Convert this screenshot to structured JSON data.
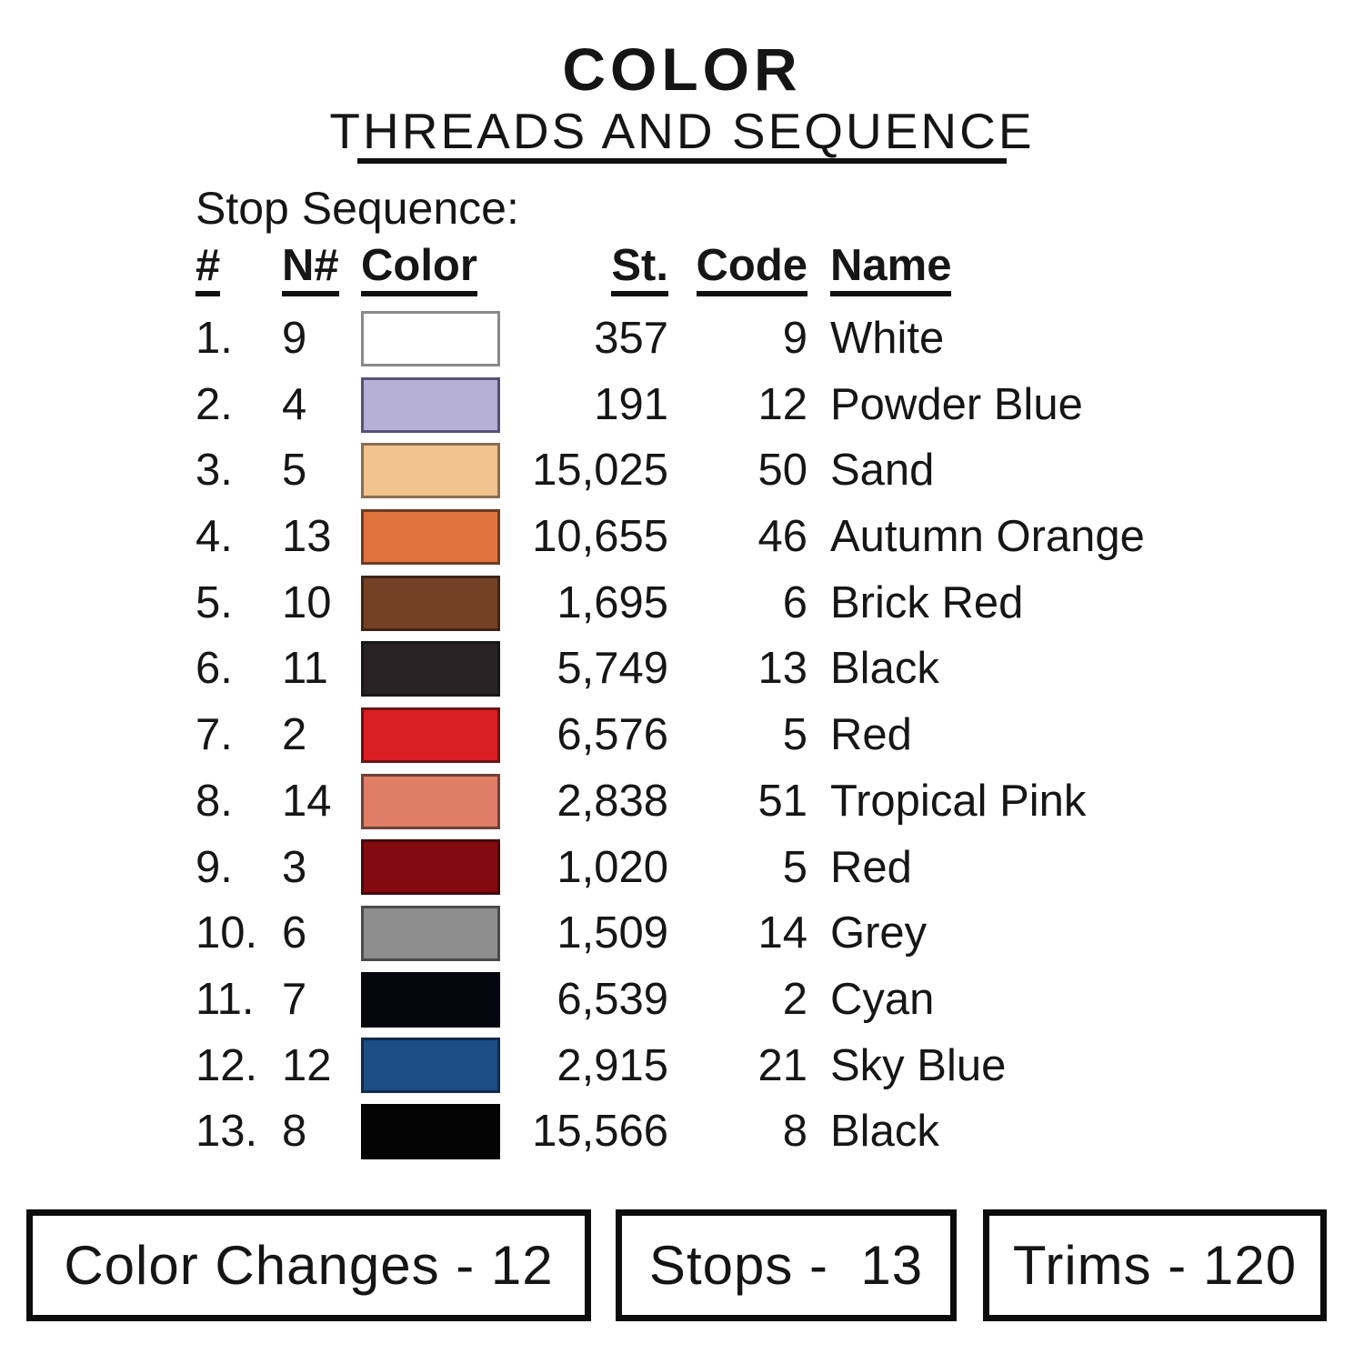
{
  "header": {
    "title": "COLOR",
    "subtitle": "THREADS AND SEQUENCE"
  },
  "section": {
    "stop_sequence_label": "Stop Sequence:"
  },
  "table": {
    "headers": [
      "#",
      "N#",
      "Color",
      "St.",
      "Code",
      "Name"
    ],
    "rows": [
      {
        "num": "1.",
        "n": "9",
        "swatch": {
          "fill": "#ffffff",
          "border": "#8a8a8a"
        },
        "st": "357",
        "code": "9",
        "name": "White"
      },
      {
        "num": "2.",
        "n": "4",
        "swatch": {
          "fill": "#b6b1d4",
          "border": "#55517a"
        },
        "st": "191",
        "code": "12",
        "name": "Powder Blue"
      },
      {
        "num": "3.",
        "n": "5",
        "swatch": {
          "fill": "#f1c48f",
          "border": "#8a6e52"
        },
        "st": "15,025",
        "code": "50",
        "name": "Sand"
      },
      {
        "num": "4.",
        "n": "13",
        "swatch": {
          "fill": "#e0743e",
          "border": "#6e3a21"
        },
        "st": "10,655",
        "code": "46",
        "name": "Autumn Orange"
      },
      {
        "num": "5.",
        "n": "10",
        "swatch": {
          "fill": "#744126",
          "border": "#3f2415"
        },
        "st": "1,695",
        "code": "6",
        "name": "Brick Red"
      },
      {
        "num": "6.",
        "n": "11",
        "swatch": {
          "fill": "#272223",
          "border": "#191616"
        },
        "st": "5,749",
        "code": "13",
        "name": "Black"
      },
      {
        "num": "7.",
        "n": "2",
        "swatch": {
          "fill": "#d91f23",
          "border": "#6b1215"
        },
        "st": "6,576",
        "code": "5",
        "name": "Red"
      },
      {
        "num": "8.",
        "n": "14",
        "swatch": {
          "fill": "#e07d66",
          "border": "#6e4038"
        },
        "st": "2,838",
        "code": "51",
        "name": "Tropical Pink"
      },
      {
        "num": "9.",
        "n": "3",
        "swatch": {
          "fill": "#830b10",
          "border": "#45080b"
        },
        "st": "1,020",
        "code": "5",
        "name": "Red"
      },
      {
        "num": "10.",
        "n": "6",
        "swatch": {
          "fill": "#8d8d8d",
          "border": "#4a4a4a"
        },
        "st": "1,509",
        "code": "14",
        "name": "Grey"
      },
      {
        "num": "11.",
        "n": "7",
        "swatch": {
          "fill": "#06060f",
          "border": "#06060f"
        },
        "st": "6,539",
        "code": "2",
        "name": "Cyan"
      },
      {
        "num": "12.",
        "n": "12",
        "swatch": {
          "fill": "#1d4d85",
          "border": "#122b4a"
        },
        "st": "2,915",
        "code": "21",
        "name": "Sky Blue"
      },
      {
        "num": "13.",
        "n": "8",
        "swatch": {
          "fill": "#040404",
          "border": "#040404"
        },
        "st": "15,566",
        "code": "8",
        "name": "Black"
      }
    ]
  },
  "summary": {
    "color_changes": "Color Changes - 12",
    "stops": "Stops -  13",
    "trims": "Trims - 120"
  }
}
